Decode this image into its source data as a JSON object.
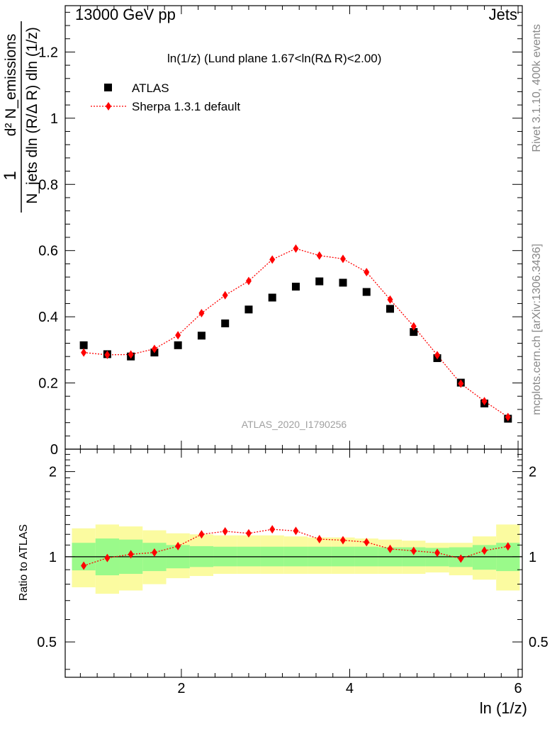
{
  "header": {
    "left": "13000 GeV pp",
    "right": "Jets"
  },
  "side_text": {
    "version": "Rivet 3.1.10,  400k events",
    "site": "mcplots.cern.ch [arXiv:1306.3436]"
  },
  "chart_data": {
    "type": "scatter",
    "title": "ln(1/z) (Lund plane 1.67<ln(RΔ R)<2.00)",
    "analysis_id": "ATLAS_2020_I1790256",
    "xlabel": "ln (1/z)",
    "ylabel_top": {
      "numerator": "d² N_emissions",
      "denominator": "N_jets dln (R/Δ R) dln (1/z)",
      "prefix": "1"
    },
    "ylabel_ratio": "Ratio to ATLAS",
    "xlim": [
      0.62,
      6.05
    ],
    "ylim": [
      0,
      1.34
    ],
    "ratio_ylim": [
      0.375,
      2.4
    ],
    "ratio_scale": "log",
    "x_ticks": [
      "2",
      "4",
      "6"
    ],
    "y_ticks": [
      "0",
      "0.2",
      "0.4",
      "0.6",
      "0.8",
      "1",
      "1.2"
    ],
    "ratio_ticks": [
      "0.5",
      "1",
      "2"
    ],
    "legend": {
      "placement": "top-left",
      "entries": [
        "ATLAS",
        "Sherpa 1.3.1 default"
      ]
    },
    "x": [
      0.84,
      1.12,
      1.4,
      1.68,
      1.96,
      2.24,
      2.52,
      2.8,
      3.08,
      3.36,
      3.64,
      3.92,
      4.2,
      4.48,
      4.76,
      5.04,
      5.32,
      5.6,
      5.88
    ],
    "series": [
      {
        "name": "ATLAS",
        "marker": "square",
        "color": "#000000",
        "values": [
          0.314,
          0.287,
          0.28,
          0.292,
          0.314,
          0.343,
          0.38,
          0.422,
          0.458,
          0.491,
          0.507,
          0.503,
          0.475,
          0.424,
          0.354,
          0.275,
          0.201,
          0.138,
          0.092
        ]
      },
      {
        "name": "Sherpa 1.3.1 default",
        "marker": "diamond",
        "color": "#ff0000",
        "line": "dotted",
        "values": [
          0.292,
          0.285,
          0.286,
          0.303,
          0.344,
          0.411,
          0.465,
          0.508,
          0.573,
          0.606,
          0.585,
          0.575,
          0.535,
          0.452,
          0.371,
          0.284,
          0.198,
          0.145,
          0.097
        ]
      }
    ],
    "ratio": {
      "x_edges": [
        0.7,
        0.98,
        1.26,
        1.54,
        1.82,
        2.1,
        2.38,
        2.66,
        2.94,
        3.22,
        3.5,
        3.78,
        4.06,
        4.34,
        4.62,
        4.9,
        5.18,
        5.46,
        5.74,
        6.02
      ],
      "sherpa_ratio": [
        0.93,
        0.99,
        1.02,
        1.035,
        1.09,
        1.2,
        1.23,
        1.21,
        1.25,
        1.234,
        1.154,
        1.144,
        1.126,
        1.066,
        1.049,
        1.033,
        0.985,
        1.051,
        1.088
      ],
      "stat_band": [
        [
          0.895,
          1.12
        ],
        [
          0.86,
          1.16
        ],
        [
          0.87,
          1.15
        ],
        [
          0.89,
          1.12
        ],
        [
          0.91,
          1.1
        ],
        [
          0.92,
          1.09
        ],
        [
          0.925,
          1.085
        ],
        [
          0.925,
          1.085
        ],
        [
          0.925,
          1.085
        ],
        [
          0.925,
          1.085
        ],
        [
          0.925,
          1.085
        ],
        [
          0.925,
          1.085
        ],
        [
          0.925,
          1.085
        ],
        [
          0.925,
          1.08
        ],
        [
          0.925,
          1.08
        ],
        [
          0.925,
          1.075
        ],
        [
          0.92,
          1.08
        ],
        [
          0.9,
          1.1
        ],
        [
          0.89,
          1.12
        ]
      ],
      "syst_band": [
        [
          0.78,
          1.26
        ],
        [
          0.74,
          1.3
        ],
        [
          0.76,
          1.28
        ],
        [
          0.8,
          1.24
        ],
        [
          0.84,
          1.21
        ],
        [
          0.855,
          1.2
        ],
        [
          0.87,
          1.19
        ],
        [
          0.87,
          1.19
        ],
        [
          0.87,
          1.19
        ],
        [
          0.87,
          1.18
        ],
        [
          0.87,
          1.17
        ],
        [
          0.87,
          1.17
        ],
        [
          0.87,
          1.16
        ],
        [
          0.87,
          1.15
        ],
        [
          0.87,
          1.14
        ],
        [
          0.88,
          1.12
        ],
        [
          0.86,
          1.12
        ],
        [
          0.83,
          1.18
        ],
        [
          0.76,
          1.3
        ]
      ],
      "colors": {
        "stat": "#9afa8a",
        "syst": "#fbfba0",
        "unity": "#000000"
      }
    }
  }
}
